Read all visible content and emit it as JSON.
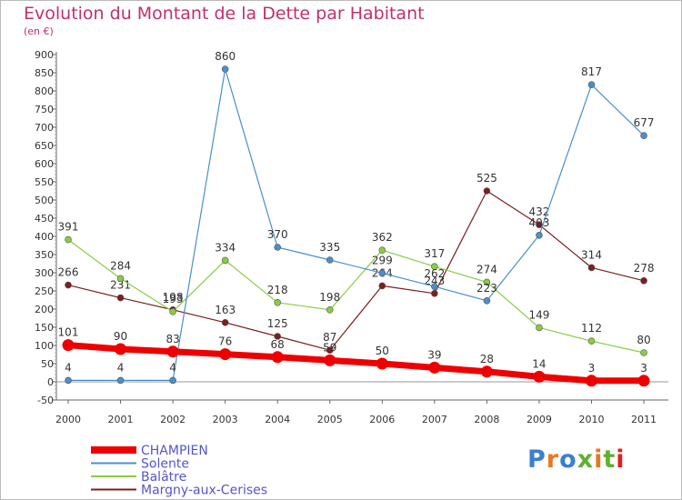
{
  "chart_data": {
    "type": "line",
    "title": "Evolution du Montant de la Dette par Habitant",
    "subtitle": "(en €)",
    "categories": [
      "2000",
      "2001",
      "2002",
      "2003",
      "2004",
      "2005",
      "2006",
      "2007",
      "2008",
      "2009",
      "2010",
      "2011"
    ],
    "ylim": [
      -50,
      900
    ],
    "yticks": [
      -50,
      0,
      50,
      100,
      150,
      200,
      250,
      300,
      350,
      400,
      450,
      500,
      550,
      600,
      650,
      700,
      750,
      800,
      850,
      900
    ],
    "grid": false,
    "legend_position": "bottom-left",
    "series": [
      {
        "name": "CHAMPIEN",
        "color": "#ee0000",
        "values": [
          101,
          90,
          83,
          76,
          68,
          59,
          50,
          39,
          28,
          14,
          3,
          3
        ]
      },
      {
        "name": "Solente",
        "color": "#4a8fc8",
        "values": [
          4,
          4,
          4,
          860,
          370,
          335,
          299,
          262,
          223,
          403,
          817,
          677
        ]
      },
      {
        "name": "Balâtre",
        "color": "#88cc44",
        "values": [
          391,
          284,
          193,
          334,
          218,
          198,
          362,
          317,
          274,
          149,
          112,
          80
        ]
      },
      {
        "name": "Margny-aux-Cerises",
        "color": "#7a1f1f",
        "values": [
          266,
          231,
          198,
          163,
          125,
          87,
          264,
          243,
          525,
          432,
          314,
          278
        ]
      }
    ]
  },
  "logo": {
    "text": "Proxiti",
    "letter_colors": [
      "#3a7fd0",
      "#e87820",
      "#3a7fd0",
      "#60b030",
      "#e87820",
      "#60b030",
      "#e02020"
    ]
  }
}
